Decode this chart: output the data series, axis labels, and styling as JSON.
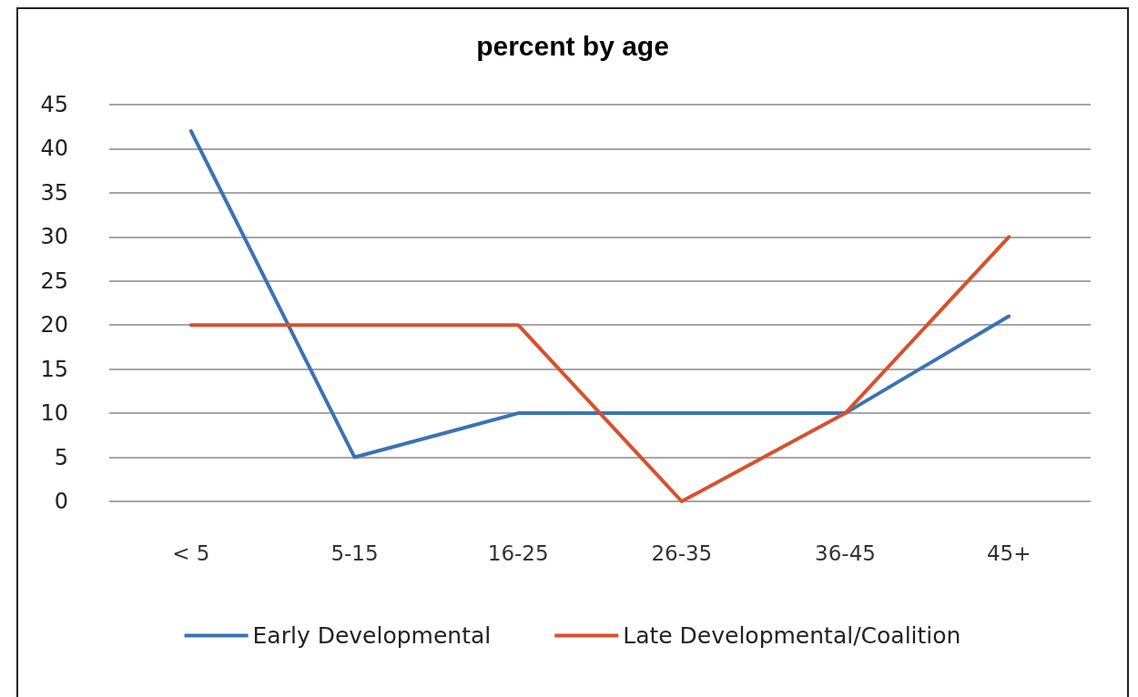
{
  "chart_data": {
    "type": "line",
    "title": "percent by age",
    "categories": [
      "< 5",
      "5-15",
      "16-25",
      "26-35",
      "36-45",
      "45+"
    ],
    "series": [
      {
        "name": "Early Developmental",
        "color": "#3c72b4",
        "values": [
          42,
          5,
          10,
          10,
          10,
          21
        ]
      },
      {
        "name": "Late Developmental/Coalition",
        "color": "#d9502c",
        "values": [
          20,
          20,
          20,
          0,
          10,
          30
        ]
      }
    ],
    "ylim": [
      0,
      45
    ],
    "yticks": [
      0,
      5,
      10,
      15,
      20,
      25,
      30,
      35,
      40,
      45
    ],
    "grid": "y",
    "legend": "bottom",
    "marker": "none",
    "line_style": "solid"
  }
}
